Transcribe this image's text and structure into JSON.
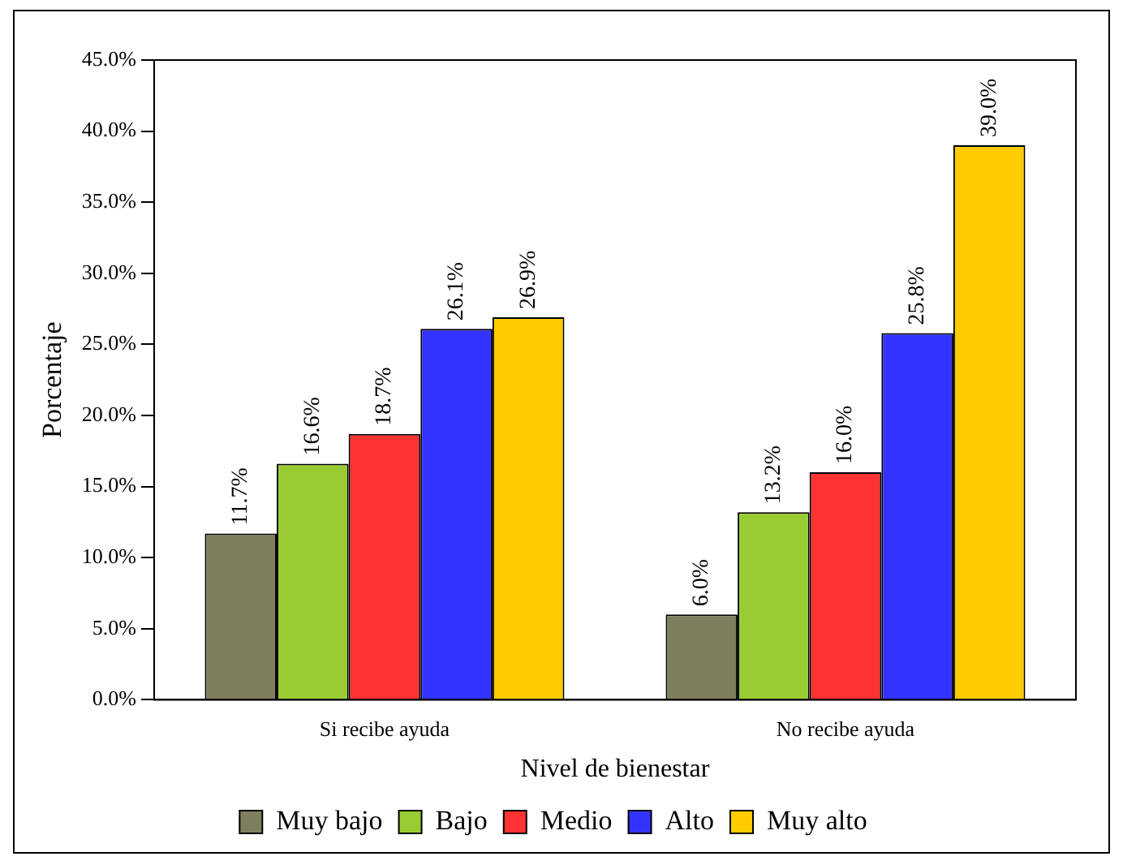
{
  "chart_data": {
    "type": "bar",
    "xlabel": "Nivel de bienestar",
    "ylabel": "Porcentaje",
    "categories": [
      "Si recibe ayuda",
      "No recibe ayuda"
    ],
    "series": [
      {
        "name": "Muy bajo",
        "color": "#7f7f5f",
        "values": [
          11.7,
          6.0
        ],
        "value_labels": [
          "11.7%",
          "6.0%"
        ]
      },
      {
        "name": "Bajo",
        "color": "#99cc33",
        "values": [
          16.6,
          13.2
        ],
        "value_labels": [
          "16.6%",
          "13.2%"
        ]
      },
      {
        "name": "Medio",
        "color": "#ff3333",
        "values": [
          18.7,
          16.0
        ],
        "value_labels": [
          "18.7%",
          "16.0%"
        ]
      },
      {
        "name": "Alto",
        "color": "#3333ff",
        "values": [
          26.1,
          25.8
        ],
        "value_labels": [
          "26.1%",
          "25.8%"
        ]
      },
      {
        "name": "Muy alto",
        "color": "#ffcc00",
        "values": [
          26.9,
          39.0
        ],
        "value_labels": [
          "26.9%",
          "39.0%"
        ]
      }
    ],
    "ylim": [
      0,
      45
    ],
    "yticks": [
      {
        "value": 0,
        "label": "0.0%"
      },
      {
        "value": 5,
        "label": "5.0%"
      },
      {
        "value": 10,
        "label": "10.0%"
      },
      {
        "value": 15,
        "label": "15.0%"
      },
      {
        "value": 20,
        "label": "20.0%"
      },
      {
        "value": 25,
        "label": "25.0%"
      },
      {
        "value": 30,
        "label": "30.0%"
      },
      {
        "value": 35,
        "label": "35.0%"
      },
      {
        "value": 40,
        "label": "40.0%"
      },
      {
        "value": 45,
        "label": "45.0%"
      }
    ],
    "grid": false,
    "legend": "bottom"
  }
}
